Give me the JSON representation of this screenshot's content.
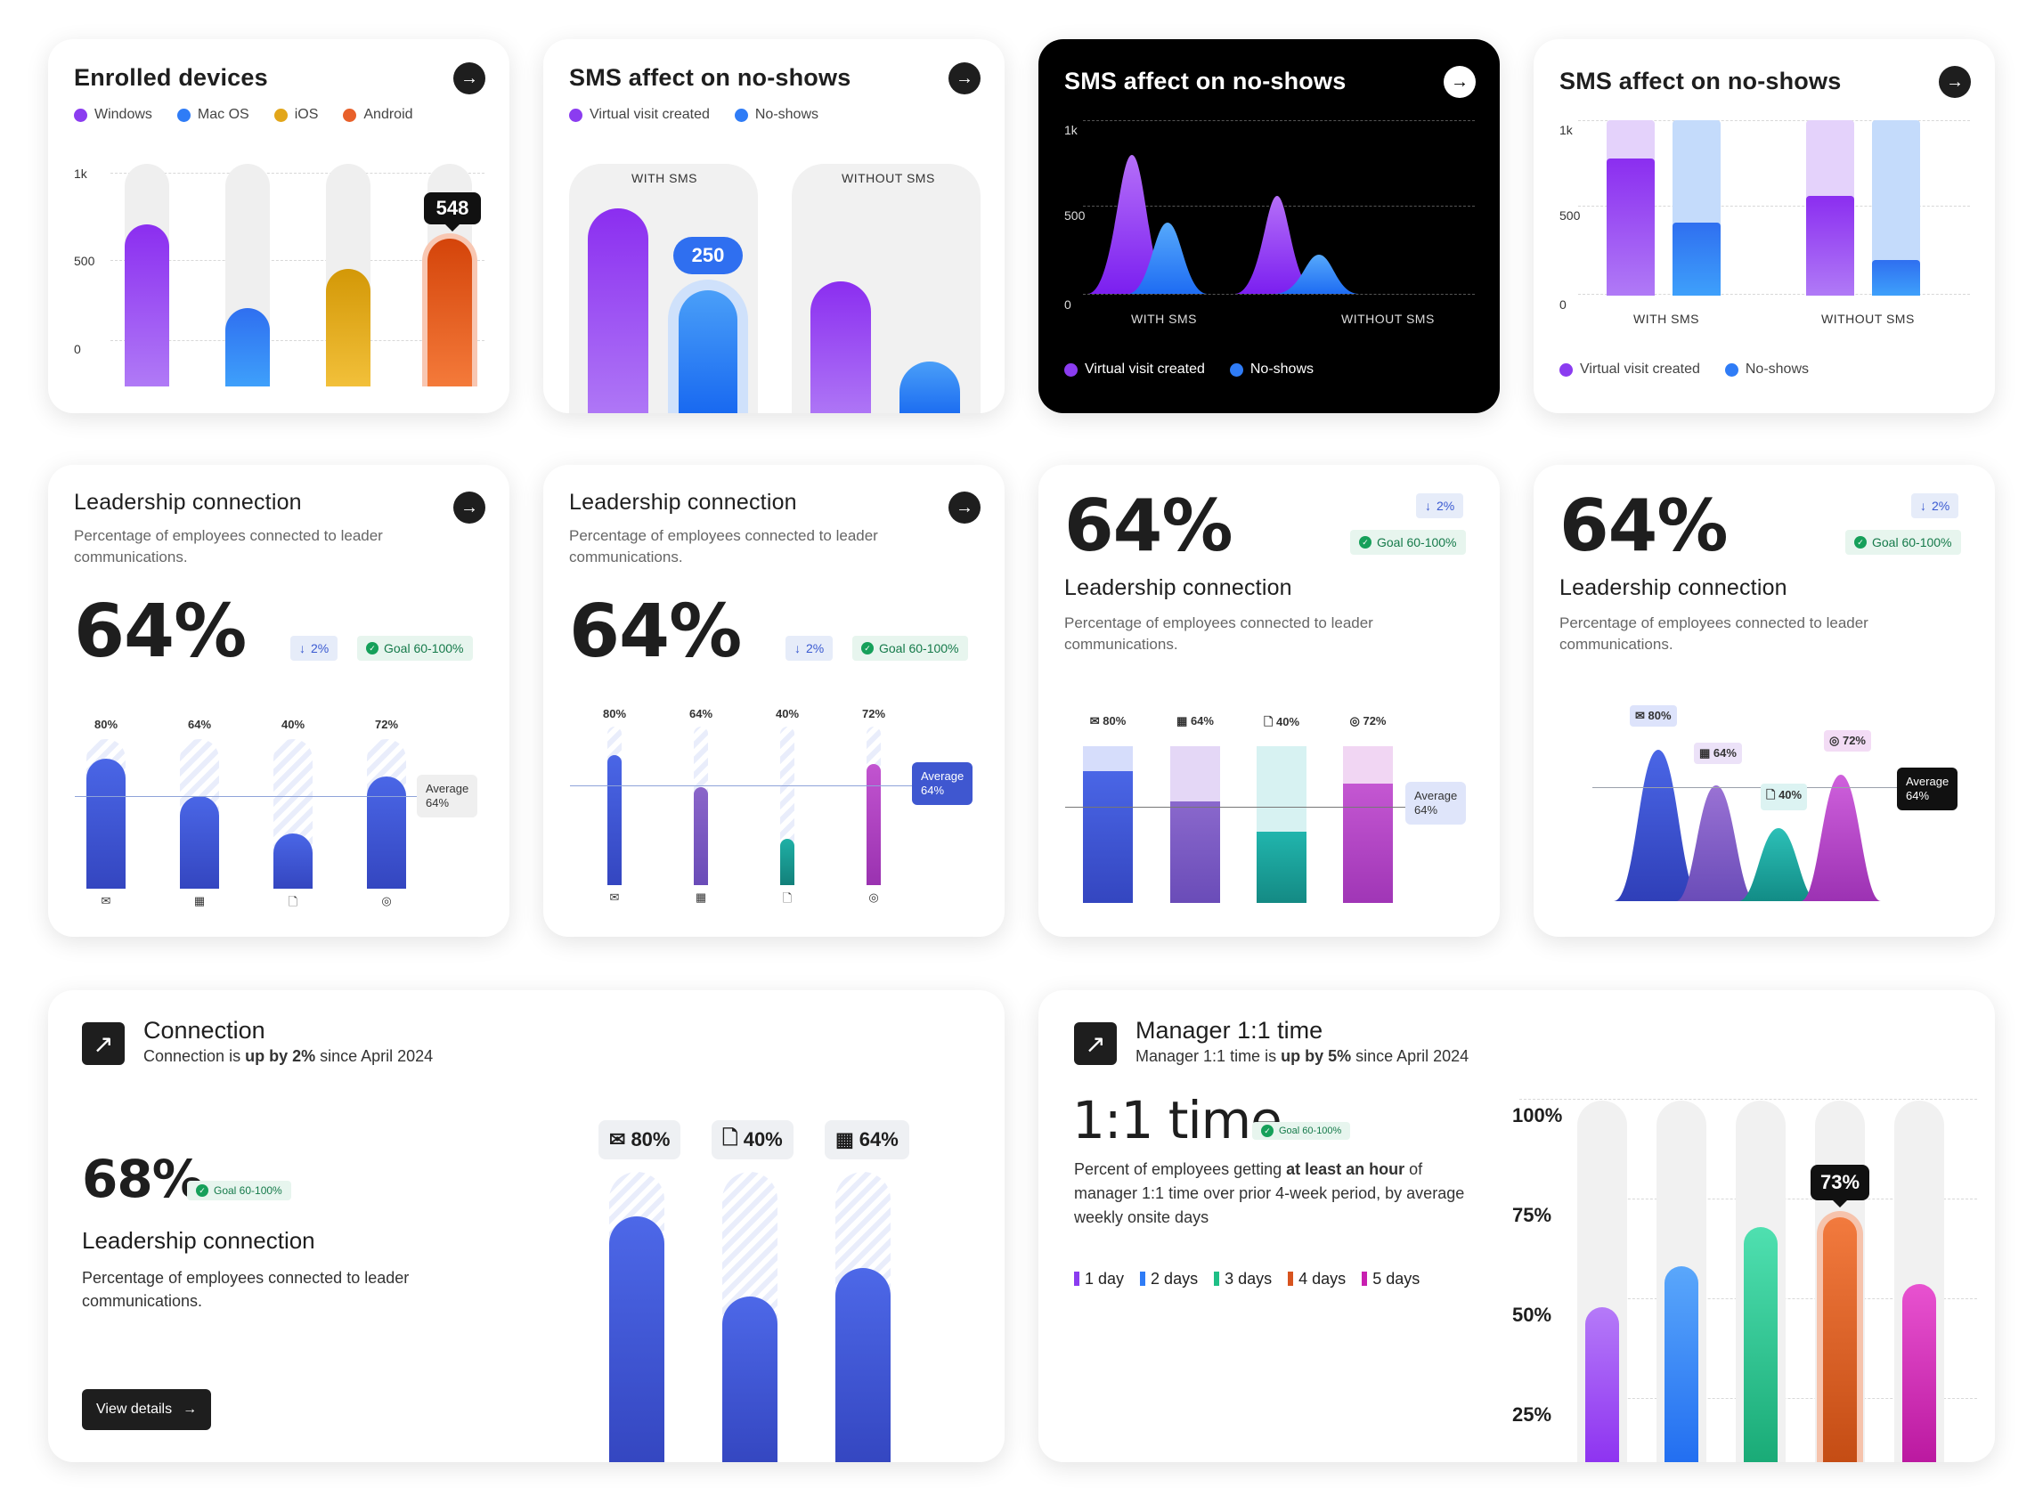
{
  "enrolled": {
    "title": "Enrolled devices",
    "legend": [
      {
        "label": "Windows",
        "color": "#8b3cf0"
      },
      {
        "label": "Mac OS",
        "color": "#2f7cf6"
      },
      {
        "label": "iOS",
        "color": "#e2a61a"
      },
      {
        "label": "Android",
        "color": "#e8602a"
      }
    ],
    "ticks": [
      "1k",
      "500",
      "0"
    ],
    "tooltip": "548"
  },
  "sms1": {
    "title": "SMS affect on no-shows",
    "legend": [
      "Virtual visit created",
      "No-shows"
    ],
    "with_label": "WITH SMS",
    "without_label": "WITHOUT SMS",
    "tooltip": "250"
  },
  "sms2": {
    "title": "SMS affect on no-shows",
    "ticks": [
      "1k",
      "500",
      "0"
    ],
    "with_label": "WITH SMS",
    "without_label": "WITHOUT SMS",
    "legend": [
      "Virtual visit created",
      "No-shows"
    ]
  },
  "sms3": {
    "title": "SMS affect on no-shows",
    "ticks": [
      "1k",
      "500",
      "0"
    ],
    "with_label": "WITH SMS",
    "without_label": "WITHOUT SMS",
    "legend": [
      "Virtual visit created",
      "No-shows"
    ]
  },
  "lead1": {
    "title": "Leadership connection",
    "subtitle": "Percentage of employees connected to leader communications.",
    "value": "64%",
    "delta": "2%",
    "goal": "Goal 60-100%",
    "bars": [
      "80%",
      "64%",
      "40%",
      "72%"
    ],
    "average": [
      "Average",
      "64%"
    ]
  },
  "lead2": {
    "title": "Leadership connection",
    "subtitle": "Percentage of employees connected to leader communications.",
    "value": "64%",
    "delta": "2%",
    "goal": "Goal 60-100%",
    "bars": [
      "80%",
      "64%",
      "40%",
      "72%"
    ],
    "average": [
      "Average",
      "64%"
    ]
  },
  "lead3": {
    "value": "64%",
    "delta": "2%",
    "goal": "Goal 60-100%",
    "title": "Leadership connection",
    "subtitle": "Percentage of employees connected to leader communications.",
    "bars": [
      "80%",
      "64%",
      "40%",
      "72%"
    ],
    "average": [
      "Average",
      "64%"
    ]
  },
  "lead4": {
    "value": "64%",
    "delta": "2%",
    "goal": "Goal 60-100%",
    "title": "Leadership connection",
    "subtitle": "Percentage of employees connected to leader communications.",
    "bars": [
      "80%",
      "64%",
      "40%",
      "72%"
    ],
    "average": [
      "Average",
      "64%"
    ]
  },
  "connection": {
    "title": "Connection",
    "sub_pre": "Connection is ",
    "sub_bold": "up by 2%",
    "sub_post": " since April 2024",
    "value": "68%",
    "goal": "Goal 60-100%",
    "metric_title": "Leadership connection",
    "metric_sub": "Percentage of employees connected to leader communications.",
    "button": "View details",
    "chips": [
      "80%",
      "40%",
      "64%"
    ]
  },
  "manager": {
    "title": "Manager 1:1 time",
    "sub_pre": "Manager 1:1 time is ",
    "sub_bold": "up by 5%",
    "sub_post": " since April 2024",
    "big": "1:1 time",
    "goal": "Goal 60-100%",
    "desc_pre": "Percent of employees getting ",
    "desc_bold": "at least an hour",
    "desc_post": " of manager 1:1 time over prior 4-week period, by average weekly onsite days",
    "legend": [
      {
        "label": "1 day",
        "color": "#8b3cf0"
      },
      {
        "label": "2 days",
        "color": "#2f7cf6"
      },
      {
        "label": "3 days",
        "color": "#1fbf86"
      },
      {
        "label": "4 days",
        "color": "#d8541f"
      },
      {
        "label": "5 days",
        "color": "#c81fb0"
      }
    ],
    "ticks": [
      "100%",
      "75%",
      "50%",
      "25%"
    ],
    "tooltip": "73%"
  },
  "chart_data": [
    {
      "type": "bar",
      "title": "Enrolled devices",
      "categories": [
        "Windows",
        "Mac OS",
        "iOS",
        "Android"
      ],
      "values": [
        720,
        350,
        530,
        548
      ],
      "ylim": [
        0,
        1000
      ]
    },
    {
      "type": "bar",
      "title": "SMS affect on no-shows",
      "categories": [
        "WITH SMS",
        "WITHOUT SMS"
      ],
      "series": [
        {
          "name": "Virtual visit created",
          "values": [
            800,
            520
          ]
        },
        {
          "name": "No-shows",
          "values": [
            250,
            120
          ]
        }
      ]
    },
    {
      "type": "area",
      "title": "SMS affect on no-shows",
      "categories": [
        "WITH SMS",
        "WITHOUT SMS"
      ],
      "series": [
        {
          "name": "Virtual visit created",
          "values": [
            820,
            580
          ]
        },
        {
          "name": "No-shows",
          "values": [
            430,
            250
          ]
        }
      ],
      "ylim": [
        0,
        1000
      ]
    },
    {
      "type": "bar",
      "title": "SMS affect on no-shows",
      "categories": [
        "WITH SMS",
        "WITHOUT SMS"
      ],
      "series": [
        {
          "name": "Virtual visit created",
          "values": [
            780,
            570
          ]
        },
        {
          "name": "No-shows",
          "values": [
            420,
            210
          ]
        }
      ],
      "ylim": [
        0,
        1000
      ]
    },
    {
      "type": "bar",
      "title": "Leadership connection",
      "categories": [
        "Email",
        "Calendar",
        "Document",
        "Chat"
      ],
      "values": [
        80,
        64,
        40,
        72
      ]
    },
    {
      "type": "bar",
      "title": "Manager 1:1 time",
      "categories": [
        "1 day",
        "2 days",
        "3 days",
        "4 days",
        "5 days"
      ],
      "values": [
        48,
        60,
        70,
        73,
        53
      ]
    }
  ]
}
